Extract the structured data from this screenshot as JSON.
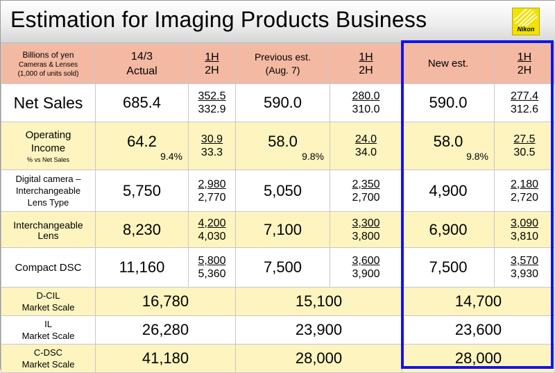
{
  "title": "Estimation for Imaging Products Business",
  "logo_text": "Nikon",
  "colors": {
    "header": "#f4b9a2",
    "band_yellow": "#fdf4bf",
    "highlight": "#1414e6",
    "logo": "#f3e200"
  },
  "header": {
    "units_line1": "Billions of yen",
    "units_line2": "Cameras & Lenses",
    "units_line3": "(1,000 of units sold)",
    "actual_line1": "14/3",
    "actual_line2": "Actual",
    "half_top": "1H",
    "half_bot": "2H",
    "prev_line1": "Previous est.",
    "prev_line2": "(Aug. 7)",
    "new_label": "New est."
  },
  "rows": {
    "net_sales": {
      "label": "Net Sales",
      "actual": "685.4",
      "actual_1h": "352.5",
      "actual_2h": "332.9",
      "prev": "590.0",
      "prev_1h": "280.0",
      "prev_2h": "310.0",
      "new": "590.0",
      "new_1h": "277.4",
      "new_2h": "312.6"
    },
    "operating_income": {
      "label_line1": "Operating",
      "label_line2": "Income",
      "label_note": "% vs Net Sales",
      "actual": "64.2",
      "actual_pct": "9.4%",
      "actual_1h": "30.9",
      "actual_2h": "33.3",
      "prev": "58.0",
      "prev_pct": "9.8%",
      "prev_1h": "24.0",
      "prev_2h": "34.0",
      "new": "58.0",
      "new_pct": "9.8%",
      "new_1h": "27.5",
      "new_2h": "30.5"
    },
    "digital_camera": {
      "label_line1": "Digital camera –",
      "label_line2": "Interchangeable",
      "label_line3": "Lens Type",
      "actual": "5,750",
      "actual_1h": "2,980",
      "actual_2h": "2,770",
      "prev": "5,050",
      "prev_1h": "2,350",
      "prev_2h": "2,700",
      "new": "4,900",
      "new_1h": "2,180",
      "new_2h": "2,720"
    },
    "interchangeable_lens": {
      "label_line1": "Interchangeable",
      "label_line2": "Lens",
      "actual": "8,230",
      "actual_1h": "4,200",
      "actual_2h": "4,030",
      "prev": "7,100",
      "prev_1h": "3,300",
      "prev_2h": "3,800",
      "new": "6,900",
      "new_1h": "3,090",
      "new_2h": "3,810"
    },
    "compact_dsc": {
      "label": "Compact DSC",
      "actual": "11,160",
      "actual_1h": "5,800",
      "actual_2h": "5,360",
      "prev": "7,500",
      "prev_1h": "3,600",
      "prev_2h": "3,900",
      "new": "7,500",
      "new_1h": "3,570",
      "new_2h": "3,930"
    },
    "dcil_market": {
      "label_line1": "D-CIL",
      "label_line2": "Market Scale",
      "actual": "16,780",
      "prev": "15,100",
      "new": "14,700"
    },
    "il_market": {
      "label_line1": "IL",
      "label_line2": "Market Scale",
      "actual": "26,280",
      "prev": "23,900",
      "new": "23,600"
    },
    "cdsc_market": {
      "label_line1": "C-DSC",
      "label_line2": "Market Scale",
      "actual": "41,180",
      "prev": "28,000",
      "new": "28,000"
    }
  }
}
